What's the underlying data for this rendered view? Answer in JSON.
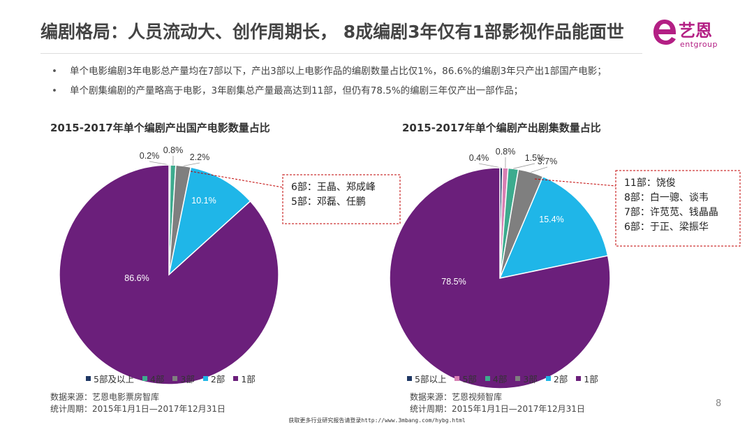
{
  "header": {
    "title": "编剧格局：人员流动大、创作周期长， 8成编剧3年仅有1部影视作品能面世",
    "logo_cn": "艺恩",
    "logo_en": "entgroup"
  },
  "bullets": [
    "单个电影编剧3年电影总产量均在7部以下，产出3部以上电影作品的编剧数量占比仅1%，86.6%的编剧3年只产出1部国产电影；",
    "单个剧集编剧的产量略高于电影，3年剧集总产量最高达到11部，但仍有78.5%的编剧三年仅产出一部作品；"
  ],
  "chart_data": [
    {
      "type": "pie",
      "title": "2015-2017年单个编剧产出国产电影数量占比",
      "categories": [
        "5部及以上",
        "4部",
        "3部",
        "2部",
        "1部"
      ],
      "values": [
        0.2,
        0.8,
        2.2,
        10.1,
        86.6
      ],
      "labels": [
        "0.2%",
        "0.8%",
        "2.2%",
        "10.1%",
        "86.6%"
      ],
      "colors": [
        "#1f3864",
        "#3dab8e",
        "#7f7f7f",
        "#1fb6e8",
        "#6b1f7b"
      ],
      "annotation": [
        "6部：王晶、郑成峰",
        "5部：邓磊、任鹏"
      ],
      "legend_position": "bottom"
    },
    {
      "type": "pie",
      "title": "2015-2017年单个编剧产出剧集数量占比",
      "categories": [
        "5部以上",
        "5部",
        "4部",
        "3部",
        "2部",
        "1部"
      ],
      "values": [
        0.4,
        0.8,
        1.5,
        3.7,
        15.4,
        78.5
      ],
      "labels": [
        "0.4%",
        "0.8%",
        "1.5%",
        "3.7%",
        "15.4%",
        "78.5%"
      ],
      "colors": [
        "#1f3864",
        "#d77fb3",
        "#3dab8e",
        "#7f7f7f",
        "#1fb6e8",
        "#6b1f7b"
      ],
      "annotation": [
        "11部：饶俊",
        "8部：白一骢、谈韦",
        "7部：许苋苋、钱晶晶",
        "6部：于正、梁振华"
      ],
      "legend_position": "bottom"
    }
  ],
  "sources": [
    [
      "数据来源：艺恩电影票房智库",
      "统计周期：2015年1月1日—2017年12月31日"
    ],
    [
      "数据来源：艺恩视频智库",
      "统计周期：2015年1月1日—2017年12月31日"
    ]
  ],
  "page_number": "8",
  "footer": "获取更多行业研究报告请登录http://www.3mbang.com/hybg.html"
}
